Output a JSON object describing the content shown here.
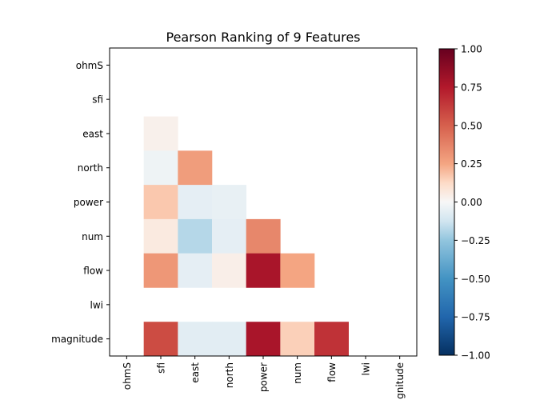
{
  "chart_data": {
    "type": "heatmap",
    "title": "Pearson Ranking of 9 Features",
    "features": [
      "ohmS",
      "sfi",
      "east",
      "north",
      "power",
      "num",
      "flow",
      "lwi",
      "magnitude"
    ],
    "matrix": [
      [
        null,
        null,
        null,
        null,
        null,
        null,
        null,
        null,
        null
      ],
      [
        null,
        null,
        null,
        null,
        null,
        null,
        null,
        null,
        null
      ],
      [
        null,
        0.03,
        null,
        null,
        null,
        null,
        null,
        null,
        null
      ],
      [
        null,
        -0.03,
        0.28,
        null,
        null,
        null,
        null,
        null,
        null
      ],
      [
        null,
        0.17,
        -0.06,
        -0.05,
        null,
        null,
        null,
        null,
        null
      ],
      [
        null,
        0.06,
        -0.18,
        -0.06,
        0.36,
        null,
        null,
        null,
        null
      ],
      [
        null,
        0.3,
        -0.06,
        0.04,
        0.78,
        0.25,
        null,
        null,
        null
      ],
      [
        null,
        null,
        null,
        null,
        null,
        null,
        null,
        null,
        null
      ],
      [
        null,
        0.57,
        -0.07,
        -0.07,
        0.78,
        0.15,
        0.66,
        null,
        null
      ]
    ],
    "colorbar": {
      "min": -1.0,
      "max": 1.0,
      "ticks": [
        "1.00",
        "0.75",
        "0.50",
        "0.25",
        "0.00",
        "−0.25",
        "−0.50",
        "−0.75",
        "−1.00"
      ],
      "tick_values": [
        1.0,
        0.75,
        0.5,
        0.25,
        0.0,
        -0.25,
        -0.5,
        -0.75,
        -1.0
      ],
      "colormap": "RdBu_r"
    }
  }
}
